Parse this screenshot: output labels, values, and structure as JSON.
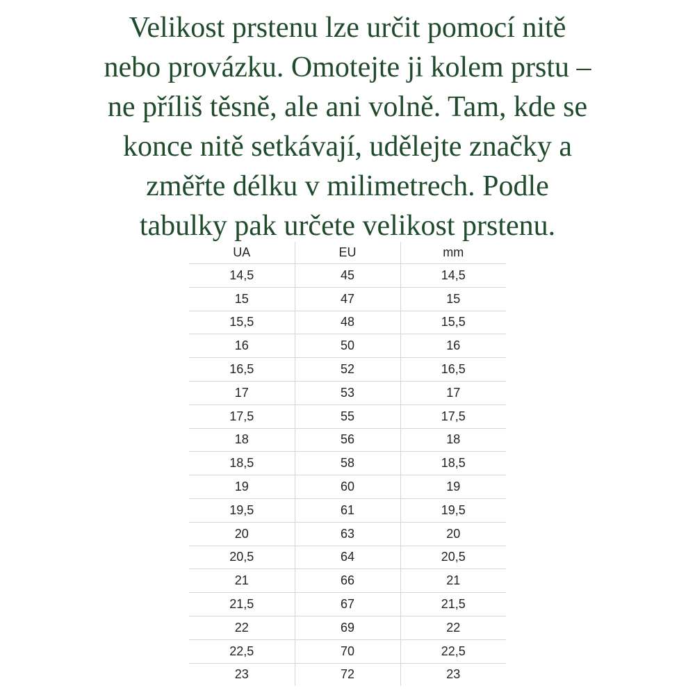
{
  "intro": {
    "lines": [
      "Velikost prstenu lze určit pomocí nitě",
      "nebo provázku. Omotejte ji kolem prstu –",
      "ne příliš těsně, ale ani volně. Tam, kde se",
      "konce nitě setkávají, udělejte značky a",
      "změřte délku v milimetrech. Podle",
      "tabulky pak určete velikost prstenu."
    ]
  },
  "table": {
    "header": [
      "UA",
      "EU",
      "mm"
    ],
    "rows": [
      [
        "14,5",
        "45",
        "14,5"
      ],
      [
        "15",
        "47",
        "15"
      ],
      [
        "15,5",
        "48",
        "15,5"
      ],
      [
        "16",
        "50",
        "16"
      ],
      [
        "16,5",
        "52",
        "16,5"
      ],
      [
        "17",
        "53",
        "17"
      ],
      [
        "17,5",
        "55",
        "17,5"
      ],
      [
        "18",
        "56",
        "18"
      ],
      [
        "18,5",
        "58",
        "18,5"
      ],
      [
        "19",
        "60",
        "19"
      ],
      [
        "19,5",
        "61",
        "19,5"
      ],
      [
        "20",
        "63",
        "20"
      ],
      [
        "20,5",
        "64",
        "20,5"
      ],
      [
        "21",
        "66",
        "21"
      ],
      [
        "21,5",
        "67",
        "21,5"
      ],
      [
        "22",
        "69",
        "22"
      ],
      [
        "22,5",
        "70",
        "22,5"
      ],
      [
        "23",
        "72",
        "23"
      ]
    ]
  }
}
